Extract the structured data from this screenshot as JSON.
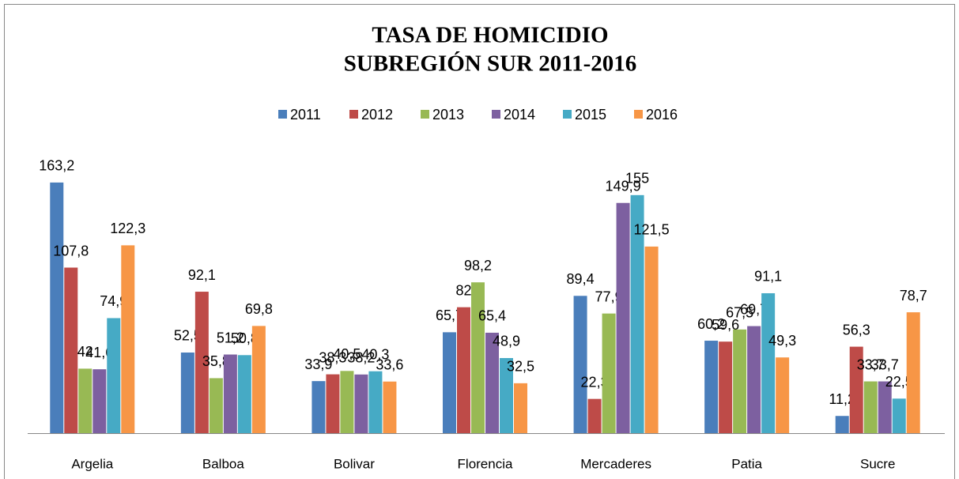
{
  "chart_data": {
    "type": "bar",
    "title": "TASA DE HOMICIDIO",
    "subtitle": "SUBREGIÓN SUR 2011-2016",
    "categories": [
      "Argelia",
      "Balboa",
      "Bolivar",
      "Florencia",
      "Mercaderes",
      "Patia",
      "Sucre"
    ],
    "ylim": [
      0,
      180
    ],
    "legend": "top",
    "series": [
      {
        "name": "2011",
        "color": "#4a7ebb",
        "values": [
          163.2,
          52.5,
          33.9,
          65.7,
          89.4,
          60.2,
          11.2
        ],
        "value_labels": [
          "163,2",
          "52,5",
          "33,9",
          "65,7",
          "89,4",
          "60,2",
          "11,2"
        ]
      },
      {
        "name": "2012",
        "color": "#be4b48",
        "values": [
          107.8,
          92.1,
          38.3,
          82,
          22.3,
          59.6,
          56.3
        ],
        "value_labels": [
          "107,8",
          "92,1",
          "38,3",
          "82",
          "22,3",
          "59,6",
          "56,3"
        ]
      },
      {
        "name": "2013",
        "color": "#98b954",
        "values": [
          42,
          35.8,
          40.5,
          98.2,
          77.9,
          67.5,
          33.7
        ],
        "value_labels": [
          "42",
          "35,8",
          "40,5",
          "98,2",
          "77,9",
          "67,5",
          "33,7"
        ]
      },
      {
        "name": "2014",
        "color": "#7d60a0",
        "values": [
          41.6,
          51.2,
          38.2,
          65.4,
          149.9,
          69.7,
          33.7
        ],
        "value_labels": [
          "41,6",
          "51,2",
          "38,2",
          "65,4",
          "149,9",
          "69,7",
          "33,7"
        ]
      },
      {
        "name": "2015",
        "color": "#46aac5",
        "values": [
          74.9,
          50.8,
          40.3,
          48.9,
          155,
          91.1,
          22.5
        ],
        "value_labels": [
          "74,9",
          "50,8",
          "40,3",
          "48,9",
          "155",
          "91,1",
          "22,5"
        ]
      },
      {
        "name": "2016",
        "color": "#f79646",
        "values": [
          122.3,
          69.8,
          33.6,
          32.5,
          121.5,
          49.3,
          78.7
        ],
        "value_labels": [
          "122,3",
          "69,8",
          "33,6",
          "32,5",
          "121,5",
          "49,3",
          "78,7"
        ]
      }
    ]
  }
}
